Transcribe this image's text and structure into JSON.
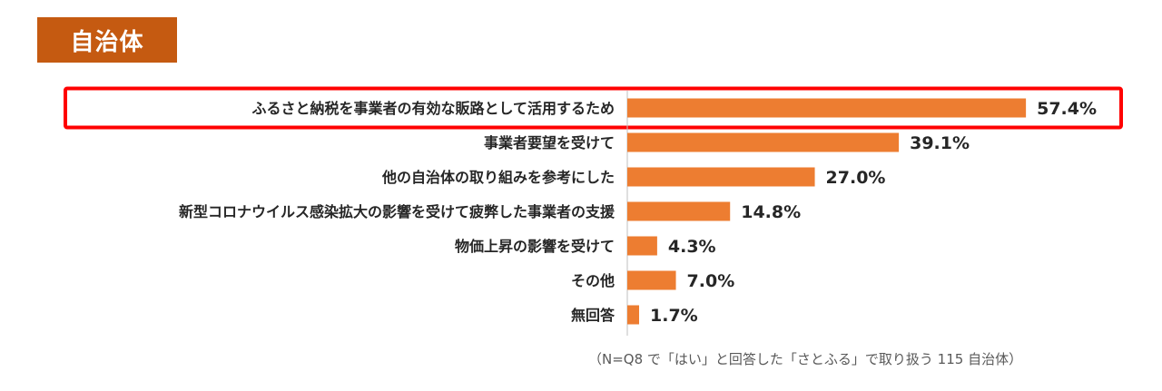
{
  "section_badge": "自治体",
  "colors": {
    "bar": "#ed7d31",
    "badge": "#c55a11",
    "highlight_border": "#ff0000",
    "axis": "#bfbfbf"
  },
  "chart_data": {
    "type": "bar",
    "orientation": "horizontal",
    "categories": [
      "ふるさと納税を事業者の有効な販路として活用するため",
      "事業者要望を受けて",
      "他の自治体の取り組みを参考にした",
      "新型コロナウイルス感染拡大の影響を受けて疲弊した事業者の支援",
      "物価上昇の影響を受けて",
      "その他",
      "無回答"
    ],
    "values": [
      57.4,
      39.1,
      27.0,
      14.8,
      4.3,
      7.0,
      1.7
    ],
    "value_labels": [
      "57.4%",
      "39.1%",
      "27.0%",
      "14.8%",
      "4.3%",
      "7.0%",
      "1.7%"
    ],
    "highlighted_index": 0,
    "grid": false
  },
  "footnote": "（N=Q8 で「はい」と回答した「さとふる」で取り扱う 115 自治体）"
}
